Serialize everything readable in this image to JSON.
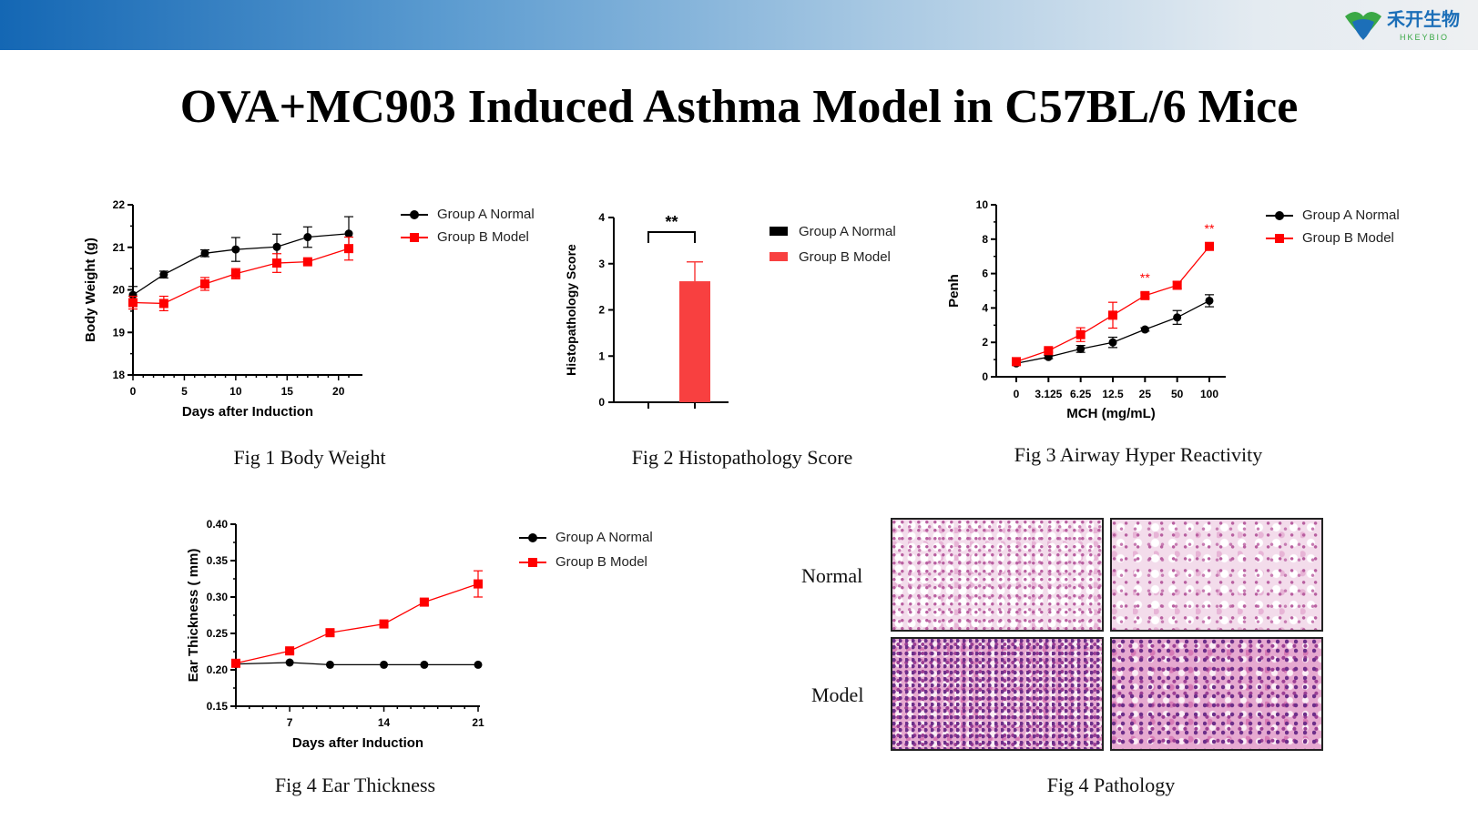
{
  "header": {
    "logo_text_cn": "禾开生物",
    "logo_text_en": "HKEYBIO"
  },
  "title": "OVA+MC903 Induced Asthma Model in C57BL/6 Mice",
  "colors": {
    "group_a": "#000000",
    "group_b": "#ff0000",
    "bar_b": "#f84040"
  },
  "legend": {
    "a": "Group A Normal",
    "b": "Group B Model"
  },
  "captions": {
    "fig1": "Fig 1 Body Weight",
    "fig2": "Fig 2 Histopathology Score",
    "fig3": "Fig 3 Airway Hyper Reactivity",
    "fig4": "Fig 4 Ear Thickness",
    "fig5": "Fig 4 Pathology"
  },
  "pathology": {
    "row1": "Normal",
    "row2": "Model"
  },
  "chart_data": [
    {
      "type": "line",
      "id": "fig1",
      "xlabel": "Days after Induction",
      "ylabel": "Body Weight (g)",
      "xlim": [
        0,
        21
      ],
      "ylim": [
        18,
        22
      ],
      "xticks": [
        0,
        5,
        10,
        15,
        20
      ],
      "yticks": [
        18,
        19,
        20,
        21,
        22
      ],
      "x": [
        0,
        3,
        7,
        10,
        14,
        17,
        21
      ],
      "series": [
        {
          "name": "Group A Normal",
          "values": [
            19.88,
            20.36,
            20.86,
            20.95,
            21.01,
            21.24,
            21.32
          ],
          "errors": [
            0.2,
            0.08,
            0.08,
            0.28,
            0.3,
            0.24,
            0.4
          ]
        },
        {
          "name": "Group B Model",
          "values": [
            19.7,
            19.68,
            20.14,
            20.38,
            20.63,
            20.66,
            20.97
          ],
          "errors": [
            0.15,
            0.17,
            0.15,
            0.12,
            0.22,
            0.05,
            0.27
          ]
        }
      ]
    },
    {
      "type": "bar",
      "id": "fig2",
      "ylabel": "Histopathology Score",
      "ylim": [
        0,
        4
      ],
      "yticks": [
        0,
        1,
        2,
        3,
        4
      ],
      "categories": [
        "Group A Normal",
        "Group B Model"
      ],
      "values": [
        0,
        2.62
      ],
      "errors": [
        0,
        0.42
      ],
      "annotation": "**"
    },
    {
      "type": "line",
      "id": "fig3",
      "xlabel": "MCH (mg/mL)",
      "ylabel": "Penh",
      "ylim": [
        0,
        10
      ],
      "yticks": [
        0,
        2,
        4,
        6,
        8,
        10
      ],
      "categories": [
        "0",
        "3.125",
        "6.25",
        "12.5",
        "25",
        "50",
        "100"
      ],
      "series": [
        {
          "name": "Group A Normal",
          "values": [
            0.78,
            1.15,
            1.62,
            2.0,
            2.75,
            3.45,
            4.42
          ],
          "errors": [
            0.1,
            0.1,
            0.2,
            0.3,
            0.1,
            0.4,
            0.35
          ]
        },
        {
          "name": "Group B Model",
          "values": [
            0.88,
            1.52,
            2.45,
            3.58,
            4.72,
            5.32,
            7.58
          ],
          "errors": [
            0.1,
            0.1,
            0.4,
            0.75,
            0.15,
            0.2,
            0.15
          ]
        }
      ],
      "annotations": [
        {
          "category": "25",
          "text": "**"
        },
        {
          "category": "100",
          "text": "**"
        }
      ]
    },
    {
      "type": "line",
      "id": "fig4",
      "xlabel": "Days after Induction",
      "ylabel": "Ear Thickness ( mm)",
      "xlim": [
        3,
        21
      ],
      "ylim": [
        0.15,
        0.4
      ],
      "xticks": [
        7,
        14,
        21
      ],
      "yticks": [
        0.15,
        0.2,
        0.25,
        0.3,
        0.35,
        0.4
      ],
      "x": [
        3,
        7,
        10,
        14,
        17,
        21
      ],
      "series": [
        {
          "name": "Group A Normal",
          "values": [
            0.208,
            0.21,
            0.207,
            0.207,
            0.207,
            0.207
          ],
          "errors": [
            0,
            0,
            0,
            0,
            0,
            0
          ]
        },
        {
          "name": "Group B Model",
          "values": [
            0.209,
            0.226,
            0.251,
            0.263,
            0.293,
            0.318
          ],
          "errors": [
            0.003,
            0.003,
            0.003,
            0.003,
            0.004,
            0.018
          ]
        }
      ]
    }
  ]
}
